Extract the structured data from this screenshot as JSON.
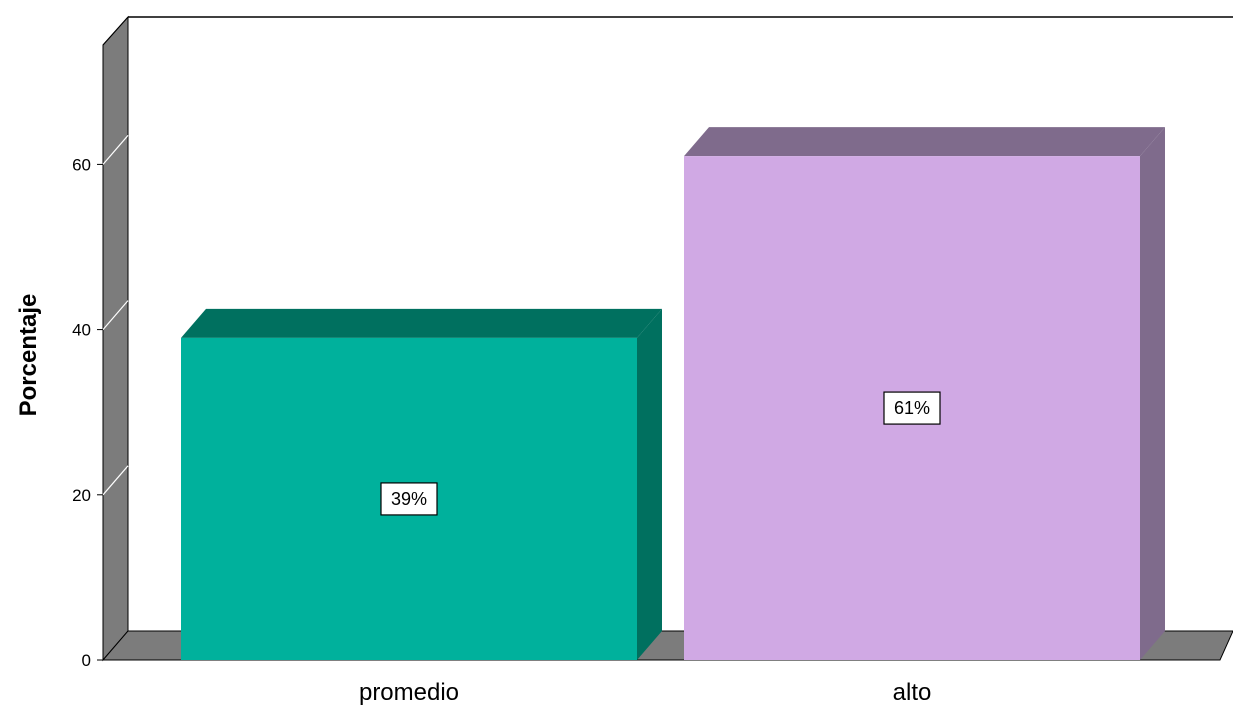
{
  "chart_data": {
    "type": "bar",
    "categories": [
      "promedio",
      "alto"
    ],
    "values": [
      39,
      61
    ],
    "data_labels": [
      "39%",
      "61%"
    ],
    "colors": [
      "#00b19c",
      "#d0a9e4"
    ],
    "side_colors": [
      "#00705f",
      "#7f6b8c"
    ],
    "ylabel": "Porcentaje",
    "ylim": [
      0,
      75
    ],
    "yticks": [
      0,
      20,
      40,
      60
    ],
    "grid": false,
    "legend": "none",
    "style": "3d-bar"
  }
}
